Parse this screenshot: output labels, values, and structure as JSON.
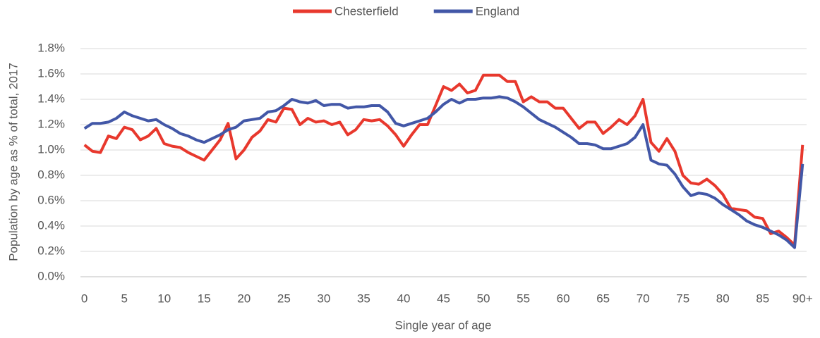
{
  "chart_data": {
    "type": "line",
    "y_label": "Population by age as % of total, 2017",
    "x_label": "Single year of age",
    "categories": [
      "0",
      null,
      null,
      null,
      null,
      "5",
      null,
      null,
      null,
      null,
      "10",
      null,
      null,
      null,
      null,
      "15",
      null,
      null,
      null,
      null,
      "20",
      null,
      null,
      null,
      null,
      "25",
      null,
      null,
      null,
      null,
      "30",
      null,
      null,
      null,
      null,
      "35",
      null,
      null,
      null,
      null,
      "40",
      null,
      null,
      null,
      null,
      "45",
      null,
      null,
      null,
      null,
      "50",
      null,
      null,
      null,
      null,
      "55",
      null,
      null,
      null,
      null,
      "60",
      null,
      null,
      null,
      null,
      "65",
      null,
      null,
      null,
      null,
      "70",
      null,
      null,
      null,
      null,
      "75",
      null,
      null,
      null,
      null,
      "80",
      null,
      null,
      null,
      null,
      "85",
      null,
      null,
      null,
      null,
      "90+"
    ],
    "series": [
      {
        "name": "Chesterfield",
        "color": "#e8382d",
        "values": [
          1.04,
          0.99,
          0.98,
          1.11,
          1.09,
          1.18,
          1.16,
          1.08,
          1.11,
          1.17,
          1.05,
          1.03,
          1.02,
          0.98,
          0.95,
          0.92,
          1.0,
          1.08,
          1.21,
          0.93,
          1.0,
          1.1,
          1.15,
          1.24,
          1.22,
          1.33,
          1.32,
          1.2,
          1.25,
          1.22,
          1.23,
          1.2,
          1.22,
          1.12,
          1.16,
          1.24,
          1.23,
          1.24,
          1.19,
          1.12,
          1.03,
          1.12,
          1.2,
          1.2,
          1.35,
          1.5,
          1.47,
          1.52,
          1.45,
          1.47,
          1.59,
          1.59,
          1.59,
          1.54,
          1.54,
          1.38,
          1.42,
          1.38,
          1.38,
          1.33,
          1.33,
          1.25,
          1.17,
          1.22,
          1.22,
          1.13,
          1.18,
          1.24,
          1.2,
          1.27,
          1.4,
          1.06,
          0.99,
          1.09,
          0.99,
          0.8,
          0.74,
          0.73,
          0.77,
          0.72,
          0.65,
          0.54,
          0.53,
          0.52,
          0.47,
          0.46,
          0.34,
          0.36,
          0.31,
          0.25,
          1.04
        ]
      },
      {
        "name": "England",
        "color": "#4257a7",
        "values": [
          1.17,
          1.21,
          1.21,
          1.22,
          1.25,
          1.3,
          1.27,
          1.25,
          1.23,
          1.24,
          1.2,
          1.17,
          1.13,
          1.11,
          1.08,
          1.06,
          1.09,
          1.12,
          1.16,
          1.18,
          1.23,
          1.24,
          1.25,
          1.3,
          1.31,
          1.35,
          1.4,
          1.38,
          1.37,
          1.39,
          1.35,
          1.36,
          1.36,
          1.33,
          1.34,
          1.34,
          1.35,
          1.35,
          1.3,
          1.21,
          1.19,
          1.21,
          1.23,
          1.25,
          1.3,
          1.36,
          1.4,
          1.37,
          1.4,
          1.4,
          1.41,
          1.41,
          1.42,
          1.41,
          1.38,
          1.34,
          1.29,
          1.24,
          1.21,
          1.18,
          1.14,
          1.1,
          1.05,
          1.05,
          1.04,
          1.01,
          1.01,
          1.03,
          1.05,
          1.1,
          1.2,
          0.92,
          0.89,
          0.88,
          0.81,
          0.71,
          0.64,
          0.66,
          0.65,
          0.62,
          0.57,
          0.53,
          0.49,
          0.44,
          0.41,
          0.39,
          0.36,
          0.33,
          0.29,
          0.23,
          0.89
        ]
      }
    ],
    "ylim": [
      0,
      1.8
    ],
    "yticks": [
      {
        "value": 0,
        "label": "0.0%"
      },
      {
        "value": 0.2,
        "label": "0.2%"
      },
      {
        "value": 0.4,
        "label": "0.4%"
      },
      {
        "value": 0.6,
        "label": "0.6%"
      },
      {
        "value": 0.8,
        "label": "0.8%"
      },
      {
        "value": 1.0,
        "label": "1.0%"
      },
      {
        "value": 1.2,
        "label": "1.2%"
      },
      {
        "value": 1.4,
        "label": "1.4%"
      },
      {
        "value": 1.6,
        "label": "1.6%"
      },
      {
        "value": 1.8,
        "label": "1.8%"
      }
    ],
    "grid": true,
    "legend": "top"
  }
}
